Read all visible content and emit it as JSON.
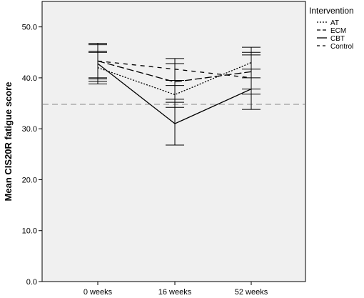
{
  "chart_data": {
    "type": "line",
    "xlabel": "",
    "ylabel": "Mean CIS20R fatigue score",
    "categories": [
      "0 weeks",
      "16 weeks",
      "52 weeks"
    ],
    "ylim": [
      0,
      55
    ],
    "yticks": [
      "0.0",
      "10.0",
      "20.0",
      "30.0",
      "40.0",
      "50.0"
    ],
    "reference_line": 34.8,
    "legend": {
      "title": "Intervention",
      "position": "right"
    },
    "series": [
      {
        "name": "AT",
        "dash": "2,2",
        "values": [
          42.0,
          36.7,
          43.0
        ],
        "err_low": [
          39.3,
          34.2,
          40.0
        ],
        "err_high": [
          45.0,
          39.5,
          46.0
        ]
      },
      {
        "name": "ECM",
        "dash": "10,4",
        "values": [
          43.3,
          39.2,
          41.2
        ],
        "err_low": [
          39.8,
          35.8,
          37.8
        ],
        "err_high": [
          46.5,
          42.8,
          44.5
        ]
      },
      {
        "name": "CBT",
        "dash": "",
        "values": [
          42.8,
          31.0,
          37.8
        ],
        "err_low": [
          38.8,
          26.8,
          33.8
        ],
        "err_high": [
          46.8,
          35.2,
          41.7
        ]
      },
      {
        "name": "Control",
        "dash": "6,6",
        "values": [
          43.3,
          41.7,
          40.0
        ],
        "err_low": [
          40.0,
          38.5,
          36.8
        ],
        "err_high": [
          45.2,
          43.8,
          45.0
        ]
      }
    ],
    "grid": false,
    "background": "#f0f0f0",
    "line_color": "#000000",
    "reference_color": "#888888"
  }
}
